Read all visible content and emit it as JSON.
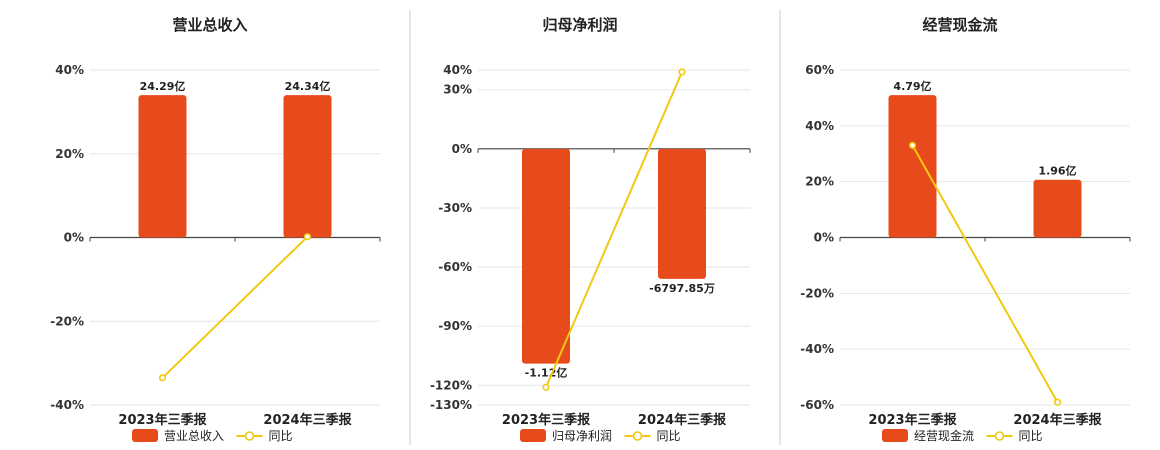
{
  "colors": {
    "bar": "#e84b1b",
    "line": "#f2c811",
    "grid": "#e6e6e6",
    "axis": "#444444",
    "divider": "#cccccc"
  },
  "chart_data": [
    {
      "type": "bar",
      "title": "营业总收入",
      "categories": [
        "2023年三季报",
        "2024年三季报"
      ],
      "series": [
        {
          "name": "营业总收入",
          "kind": "bar",
          "values": [
            34,
            34
          ],
          "labels": [
            "24.29亿",
            "24.34亿"
          ]
        },
        {
          "name": "同比",
          "kind": "line",
          "values": [
            -33.5,
            0.2
          ]
        }
      ],
      "ylim": [
        -40,
        40
      ],
      "yticks": [
        -40,
        -20,
        0,
        20,
        40
      ],
      "ytick_labels": [
        "-40%",
        "-20%",
        "0%",
        "20%",
        "40%"
      ],
      "grid": true,
      "legend": "bottom"
    },
    {
      "type": "bar",
      "title": "归母净利润",
      "categories": [
        "2023年三季报",
        "2024年三季报"
      ],
      "series": [
        {
          "name": "归母净利润",
          "kind": "bar",
          "values": [
            -109,
            -66
          ],
          "labels": [
            "-1.12亿",
            "-6797.85万"
          ]
        },
        {
          "name": "同比",
          "kind": "line",
          "values": [
            -121,
            39
          ]
        }
      ],
      "ylim": [
        -130,
        40
      ],
      "yticks": [
        -130,
        -120,
        -90,
        -60,
        -30,
        0,
        30,
        40
      ],
      "ytick_labels": [
        "-130%",
        "-120%",
        "-90%",
        "-60%",
        "-30%",
        "0%",
        "30%",
        "40%"
      ],
      "grid": true,
      "legend": "bottom"
    },
    {
      "type": "bar",
      "title": "经营现金流",
      "categories": [
        "2023年三季报",
        "2024年三季报"
      ],
      "series": [
        {
          "name": "经营现金流",
          "kind": "bar",
          "values": [
            51,
            20.7
          ],
          "labels": [
            "4.79亿",
            "1.96亿"
          ]
        },
        {
          "name": "同比",
          "kind": "line",
          "values": [
            33,
            -59
          ]
        }
      ],
      "ylim": [
        -60,
        60
      ],
      "yticks": [
        -60,
        -40,
        -20,
        0,
        20,
        40,
        60
      ],
      "ytick_labels": [
        "-60%",
        "-40%",
        "-20%",
        "0%",
        "20%",
        "40%",
        "60%"
      ],
      "grid": true,
      "legend": "bottom"
    }
  ]
}
